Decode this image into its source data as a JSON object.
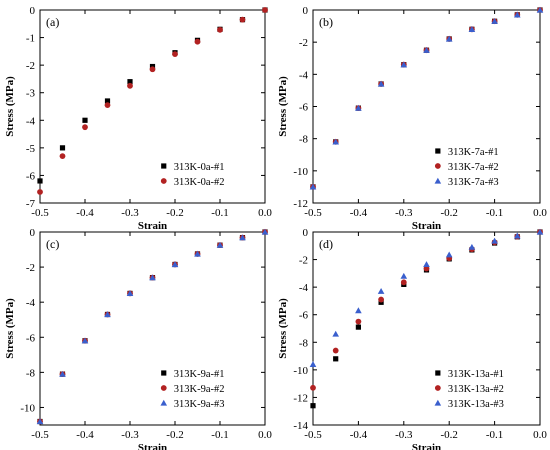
{
  "chart_data": [
    {
      "type": "scatter",
      "panel_label": "(a)",
      "xlabel": "Strain",
      "ylabel": "Stress (MPa)",
      "xlim": [
        -0.5,
        0.0
      ],
      "ylim": [
        -7,
        0
      ],
      "xticks": [
        "-0.5",
        "-0.4",
        "-0.3",
        "-0.2",
        "-0.1",
        "0.0"
      ],
      "xtick_values": [
        -0.5,
        -0.4,
        -0.3,
        -0.2,
        -0.1,
        0.0
      ],
      "yticks": [
        "-7",
        "-6",
        "-5",
        "-4",
        "-3",
        "-2",
        "-1",
        "0"
      ],
      "ytick_values": [
        -7,
        -6,
        -5,
        -4,
        -3,
        -2,
        -1,
        0
      ],
      "legend_position": "bottom-right",
      "series": [
        {
          "name": "313K-0a-#1",
          "marker": "square",
          "color": "#000000",
          "x": [
            -0.5,
            -0.45,
            -0.4,
            -0.35,
            -0.3,
            -0.25,
            -0.2,
            -0.15,
            -0.1,
            -0.05,
            0.0
          ],
          "y": [
            -6.2,
            -5.0,
            -4.0,
            -3.3,
            -2.6,
            -2.05,
            -1.55,
            -1.1,
            -0.7,
            -0.35,
            0.0
          ]
        },
        {
          "name": "313K-0a-#2",
          "marker": "circle",
          "color": "#b22222",
          "x": [
            -0.5,
            -0.45,
            -0.4,
            -0.35,
            -0.3,
            -0.25,
            -0.2,
            -0.15,
            -0.1,
            -0.05,
            0.0
          ],
          "y": [
            -6.6,
            -5.3,
            -4.25,
            -3.45,
            -2.75,
            -2.15,
            -1.6,
            -1.15,
            -0.72,
            -0.35,
            0.0
          ]
        }
      ]
    },
    {
      "type": "scatter",
      "panel_label": "(b)",
      "xlabel": "Strain",
      "ylabel": "Stress (MPa)",
      "xlim": [
        -0.5,
        0.0
      ],
      "ylim": [
        -12,
        0
      ],
      "xticks": [
        "-0.5",
        "-0.4",
        "-0.3",
        "-0.2",
        "-0.1",
        "0.0"
      ],
      "xtick_values": [
        -0.5,
        -0.4,
        -0.3,
        -0.2,
        -0.1,
        0.0
      ],
      "yticks": [
        "-12",
        "-10",
        "-8",
        "-6",
        "-4",
        "-2",
        "0"
      ],
      "ytick_values": [
        -12,
        -10,
        -8,
        -6,
        -4,
        -2,
        0
      ],
      "legend_position": "bottom-right",
      "series": [
        {
          "name": "313K-7a-#1",
          "marker": "square",
          "color": "#000000",
          "x": [
            -0.5,
            -0.45,
            -0.4,
            -0.35,
            -0.3,
            -0.25,
            -0.2,
            -0.15,
            -0.1,
            -0.05,
            0.0
          ],
          "y": [
            -11.0,
            -8.2,
            -6.1,
            -4.6,
            -3.4,
            -2.5,
            -1.8,
            -1.2,
            -0.7,
            -0.3,
            0.0
          ]
        },
        {
          "name": "313K-7a-#2",
          "marker": "circle",
          "color": "#b22222",
          "x": [
            -0.5,
            -0.45,
            -0.4,
            -0.35,
            -0.3,
            -0.25,
            -0.2,
            -0.15,
            -0.1,
            -0.05,
            0.0
          ],
          "y": [
            -11.0,
            -8.2,
            -6.1,
            -4.6,
            -3.4,
            -2.5,
            -1.8,
            -1.2,
            -0.7,
            -0.3,
            0.0
          ]
        },
        {
          "name": "313K-7a-#3",
          "marker": "triangle",
          "color": "#3a5fcd",
          "x": [
            -0.5,
            -0.45,
            -0.4,
            -0.35,
            -0.3,
            -0.25,
            -0.2,
            -0.15,
            -0.1,
            -0.05,
            0.0
          ],
          "y": [
            -11.0,
            -8.2,
            -6.1,
            -4.6,
            -3.4,
            -2.5,
            -1.8,
            -1.2,
            -0.7,
            -0.3,
            0.0
          ]
        }
      ]
    },
    {
      "type": "scatter",
      "panel_label": "(c)",
      "xlabel": "Strain",
      "ylabel": "Stress (MPa)",
      "xlim": [
        -0.5,
        0.0
      ],
      "ylim": [
        -11,
        0
      ],
      "xticks": [
        "-0.5",
        "-0.4",
        "-0.3",
        "-0.2",
        "-0.1",
        "0.0"
      ],
      "xtick_values": [
        -0.5,
        -0.4,
        -0.3,
        -0.2,
        -0.1,
        0.0
      ],
      "yticks": [
        "-10",
        "-8",
        "-6",
        "-4",
        "-2",
        "0"
      ],
      "ytick_values": [
        -10,
        -8,
        -6,
        -4,
        -2,
        0
      ],
      "legend_position": "bottom-right",
      "series": [
        {
          "name": "313K-9a-#1",
          "marker": "square",
          "color": "#000000",
          "x": [
            -0.5,
            -0.45,
            -0.4,
            -0.35,
            -0.3,
            -0.25,
            -0.2,
            -0.15,
            -0.1,
            -0.05,
            0.0
          ],
          "y": [
            -10.8,
            -8.1,
            -6.2,
            -4.7,
            -3.5,
            -2.6,
            -1.85,
            -1.25,
            -0.75,
            -0.32,
            0.0
          ]
        },
        {
          "name": "313K-9a-#2",
          "marker": "circle",
          "color": "#b22222",
          "x": [
            -0.5,
            -0.45,
            -0.4,
            -0.35,
            -0.3,
            -0.25,
            -0.2,
            -0.15,
            -0.1,
            -0.05,
            0.0
          ],
          "y": [
            -10.8,
            -8.1,
            -6.2,
            -4.7,
            -3.5,
            -2.6,
            -1.85,
            -1.25,
            -0.75,
            -0.32,
            0.0
          ]
        },
        {
          "name": "313K-9a-#3",
          "marker": "triangle",
          "color": "#3a5fcd",
          "x": [
            -0.5,
            -0.45,
            -0.4,
            -0.35,
            -0.3,
            -0.25,
            -0.2,
            -0.15,
            -0.1,
            -0.05,
            0.0
          ],
          "y": [
            -10.8,
            -8.1,
            -6.2,
            -4.7,
            -3.5,
            -2.6,
            -1.85,
            -1.25,
            -0.75,
            -0.32,
            0.0
          ]
        }
      ]
    },
    {
      "type": "scatter",
      "panel_label": "(d)",
      "xlabel": "Strain",
      "ylabel": "Stress (MPa)",
      "xlim": [
        -0.5,
        0.0
      ],
      "ylim": [
        -14,
        0
      ],
      "xticks": [
        "-0.5",
        "-0.4",
        "-0.3",
        "-0.2",
        "-0.1",
        "0.0"
      ],
      "xtick_values": [
        -0.5,
        -0.4,
        -0.3,
        -0.2,
        -0.1,
        0.0
      ],
      "yticks": [
        "-14",
        "-12",
        "-10",
        "-8",
        "-6",
        "-4",
        "-2",
        "0"
      ],
      "ytick_values": [
        -14,
        -12,
        -10,
        -8,
        -6,
        -4,
        -2,
        0
      ],
      "legend_position": "bottom-right",
      "series": [
        {
          "name": "313K-13a-#1",
          "marker": "square",
          "color": "#000000",
          "x": [
            -0.5,
            -0.45,
            -0.4,
            -0.35,
            -0.3,
            -0.25,
            -0.2,
            -0.15,
            -0.1,
            -0.05,
            0.0
          ],
          "y": [
            -12.6,
            -9.2,
            -6.9,
            -5.1,
            -3.8,
            -2.75,
            -1.95,
            -1.3,
            -0.8,
            -0.35,
            0.0
          ]
        },
        {
          "name": "313K-13a-#2",
          "marker": "circle",
          "color": "#b22222",
          "x": [
            -0.5,
            -0.45,
            -0.4,
            -0.35,
            -0.3,
            -0.25,
            -0.2,
            -0.15,
            -0.1,
            -0.05,
            0.0
          ],
          "y": [
            -11.3,
            -8.6,
            -6.5,
            -4.9,
            -3.65,
            -2.65,
            -1.9,
            -1.25,
            -0.75,
            -0.33,
            0.0
          ]
        },
        {
          "name": "313K-13a-#3",
          "marker": "triangle",
          "color": "#3a5fcd",
          "x": [
            -0.5,
            -0.45,
            -0.4,
            -0.35,
            -0.3,
            -0.25,
            -0.2,
            -0.15,
            -0.1,
            -0.05,
            0.0
          ],
          "y": [
            -9.6,
            -7.4,
            -5.7,
            -4.3,
            -3.2,
            -2.35,
            -1.65,
            -1.1,
            -0.65,
            -0.28,
            0.0
          ]
        }
      ]
    }
  ]
}
